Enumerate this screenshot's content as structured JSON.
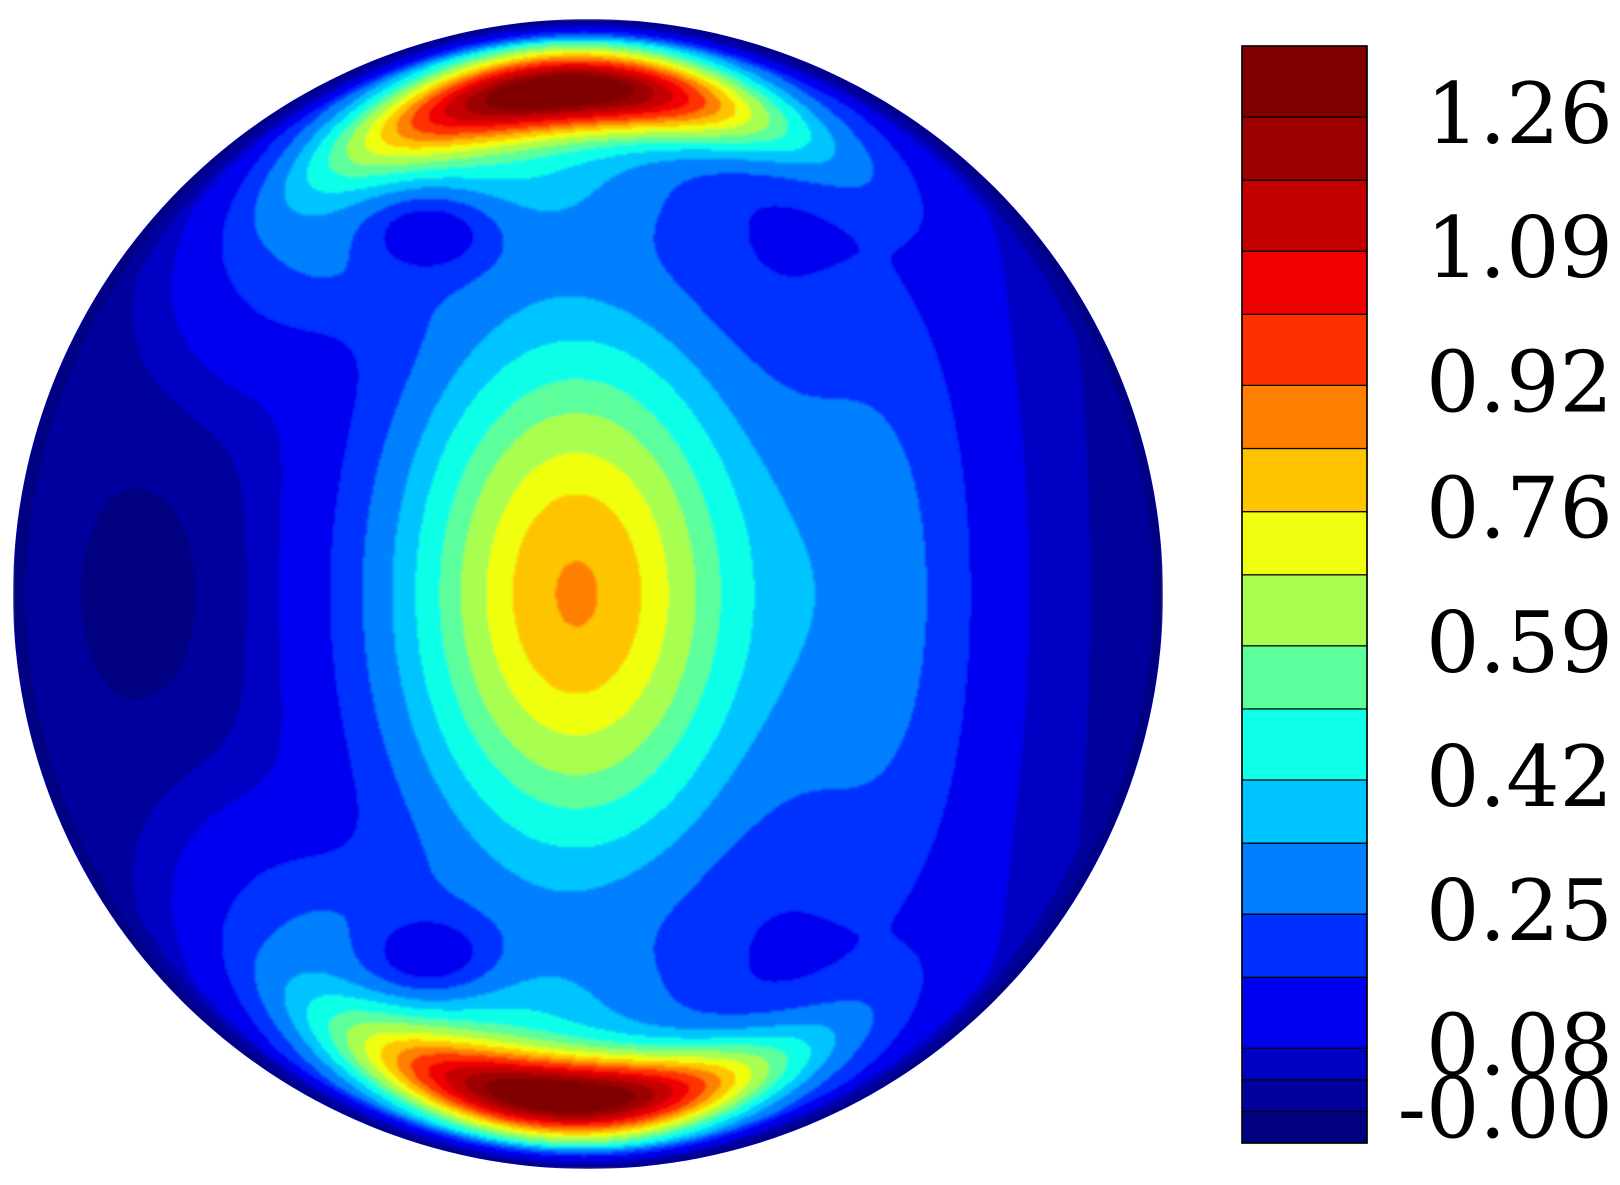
{
  "chart_data": {
    "type": "heatmap",
    "title": "",
    "xlabel": "",
    "ylabel": "",
    "grid": false,
    "colorbar": {
      "placement": "right",
      "tick_labels": [
        "1.26",
        "1.09",
        "0.92",
        "0.76",
        "0.59",
        "0.42",
        "0.25",
        "0.08",
        "-0.00"
      ],
      "tick_values": [
        1.26,
        1.09,
        0.92,
        0.76,
        0.59,
        0.42,
        0.25,
        0.08,
        0.0
      ],
      "range": [
        -0.04,
        1.35
      ],
      "levels": [
        {
          "min": -0.04,
          "max": 0.0,
          "color": "#000080"
        },
        {
          "min": 0.0,
          "max": 0.04,
          "color": "#00009c"
        },
        {
          "min": 0.04,
          "max": 0.08,
          "color": "#0000c4"
        },
        {
          "min": 0.08,
          "max": 0.17,
          "color": "#0000f0"
        },
        {
          "min": 0.17,
          "max": 0.25,
          "color": "#0030ff"
        },
        {
          "min": 0.25,
          "max": 0.34,
          "color": "#0080ff"
        },
        {
          "min": 0.34,
          "max": 0.42,
          "color": "#00c4ff"
        },
        {
          "min": 0.42,
          "max": 0.51,
          "color": "#10ffe8"
        },
        {
          "min": 0.51,
          "max": 0.59,
          "color": "#5cff9c"
        },
        {
          "min": 0.59,
          "max": 0.68,
          "color": "#a8ff50"
        },
        {
          "min": 0.68,
          "max": 0.76,
          "color": "#f0ff10"
        },
        {
          "min": 0.76,
          "max": 0.84,
          "color": "#ffc400"
        },
        {
          "min": 0.84,
          "max": 0.92,
          "color": "#ff8000"
        },
        {
          "min": 0.92,
          "max": 1.01,
          "color": "#ff3000"
        },
        {
          "min": 1.01,
          "max": 1.09,
          "color": "#f00000"
        },
        {
          "min": 1.09,
          "max": 1.18,
          "color": "#c40000"
        },
        {
          "min": 1.18,
          "max": 1.26,
          "color": "#9c0000"
        },
        {
          "min": 1.26,
          "max": 1.35,
          "color": "#800000"
        }
      ]
    },
    "field": {
      "domain": "unit disk",
      "background_value": 0.03,
      "central_lobe": {
        "center": [
          -0.02,
          0.0
        ],
        "peak": 0.88
      },
      "crescents": [
        {
          "position": "top",
          "peak": 1.3
        },
        {
          "position": "bottom",
          "peak": 1.3
        }
      ],
      "minima": [
        {
          "position": "upper-left",
          "value": 0.1
        },
        {
          "position": "lower-left",
          "value": 0.1
        }
      ]
    }
  }
}
